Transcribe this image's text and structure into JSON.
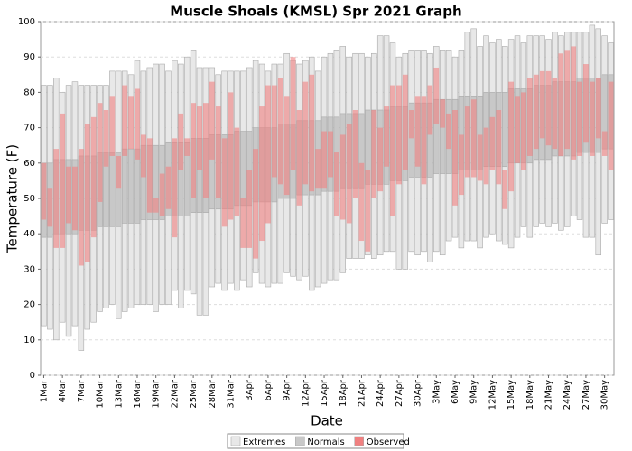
{
  "chart_data": {
    "type": "range_bar",
    "title": "Muscle Shoals (KMSL) Spr 2021 Graph",
    "x_label": "Date",
    "y_label": "Temperature (F)",
    "ylim": [
      0,
      100
    ],
    "yticks": [
      0,
      10,
      20,
      30,
      40,
      50,
      60,
      70,
      80,
      90,
      100
    ],
    "grid": true,
    "legend": "bottom",
    "categories": [
      "1Mar",
      null,
      null,
      "4Mar",
      null,
      null,
      "7Mar",
      null,
      null,
      "10Mar",
      null,
      null,
      "13Mar",
      null,
      null,
      "16Mar",
      null,
      null,
      "19Mar",
      null,
      null,
      "22Mar",
      null,
      null,
      "25Mar",
      null,
      null,
      "28Mar",
      null,
      null,
      "31Mar",
      null,
      null,
      "3Apr",
      null,
      null,
      "6Apr",
      null,
      null,
      "9Apr",
      null,
      null,
      "12Apr",
      null,
      null,
      "15Apr",
      null,
      null,
      "18Apr",
      null,
      null,
      "21Apr",
      null,
      null,
      "24Apr",
      null,
      null,
      "27Apr",
      null,
      null,
      "30Apr",
      null,
      null,
      "3May",
      null,
      null,
      "6May",
      null,
      null,
      "9May",
      null,
      null,
      "12May",
      null,
      null,
      "15May",
      null,
      null,
      "18May",
      null,
      null,
      "21May",
      null,
      null,
      "24May",
      null,
      null,
      "27May",
      null,
      null,
      "30May",
      null
    ],
    "series": [
      {
        "name": "Extremes",
        "color": "#e8e8e8",
        "low": [
          14,
          13,
          10,
          15,
          11,
          14,
          7,
          13,
          15,
          18,
          19,
          20,
          16,
          18,
          19,
          20,
          20,
          20,
          18,
          20,
          20,
          24,
          19,
          24,
          23,
          17,
          17,
          25,
          26,
          24,
          26,
          24,
          27,
          25,
          29,
          26,
          25,
          26,
          26,
          29,
          28,
          27,
          28,
          24,
          25,
          26,
          27,
          27,
          29,
          33,
          33,
          33,
          34,
          33,
          34,
          35,
          35,
          30,
          30,
          35,
          34,
          35,
          32,
          35,
          34,
          38,
          39,
          36,
          38,
          38,
          36,
          39,
          40,
          38,
          37,
          36,
          39,
          42,
          39,
          42,
          43,
          42,
          43,
          41,
          42,
          45,
          44,
          39,
          39,
          34,
          43,
          44
        ],
        "high": [
          82,
          82,
          84,
          80,
          82,
          83,
          82,
          82,
          82,
          82,
          82,
          86,
          86,
          86,
          85,
          89,
          86,
          87,
          88,
          88,
          86,
          89,
          88,
          90,
          92,
          87,
          87,
          87,
          85,
          86,
          86,
          86,
          86,
          87,
          89,
          88,
          86,
          88,
          88,
          91,
          89,
          88,
          89,
          90,
          86,
          90,
          91,
          92,
          93,
          90,
          91,
          91,
          90,
          91,
          96,
          96,
          94,
          90,
          91,
          92,
          92,
          92,
          91,
          93,
          92,
          92,
          90,
          92,
          97,
          98,
          93,
          96,
          94,
          95,
          93,
          95,
          96,
          94,
          96,
          96,
          96,
          95,
          97,
          96,
          97,
          97,
          97,
          97,
          99,
          98,
          96,
          94
        ]
      },
      {
        "name": "Normals",
        "color": "#c8c8c8",
        "low": [
          39,
          39,
          40,
          40,
          40,
          40,
          41,
          41,
          41,
          42,
          42,
          42,
          42,
          43,
          43,
          43,
          44,
          44,
          44,
          44,
          45,
          45,
          45,
          45,
          46,
          46,
          46,
          47,
          47,
          47,
          47,
          48,
          48,
          48,
          49,
          49,
          49,
          49,
          50,
          50,
          50,
          51,
          51,
          51,
          51,
          52,
          52,
          52,
          53,
          53,
          53,
          53,
          54,
          54,
          54,
          54,
          55,
          55,
          55,
          56,
          56,
          56,
          56,
          57,
          57,
          57,
          57,
          58,
          58,
          58,
          58,
          59,
          59,
          59,
          59,
          60,
          60,
          60,
          60,
          61,
          61,
          61,
          62,
          62,
          62,
          62,
          63,
          63,
          63,
          63,
          64,
          64
        ],
        "high": [
          60,
          60,
          61,
          61,
          61,
          61,
          62,
          62,
          62,
          63,
          63,
          63,
          63,
          64,
          64,
          64,
          65,
          65,
          65,
          65,
          66,
          66,
          66,
          66,
          67,
          67,
          67,
          68,
          68,
          68,
          68,
          69,
          69,
          69,
          70,
          70,
          70,
          70,
          71,
          71,
          71,
          72,
          72,
          72,
          72,
          73,
          73,
          73,
          74,
          74,
          74,
          74,
          75,
          75,
          75,
          75,
          76,
          76,
          76,
          77,
          77,
          77,
          77,
          78,
          78,
          78,
          78,
          79,
          79,
          79,
          79,
          80,
          80,
          80,
          80,
          81,
          81,
          81,
          81,
          82,
          82,
          82,
          83,
          83,
          83,
          83,
          84,
          84,
          84,
          84,
          85,
          85
        ]
      },
      {
        "name": "Observed",
        "color": "#f08080",
        "low": [
          44,
          42,
          36,
          36,
          43,
          41,
          31,
          32,
          39,
          49,
          59,
          62,
          53,
          62,
          64,
          61,
          56,
          46,
          46,
          45,
          47,
          39,
          58,
          62,
          50,
          58,
          50,
          61,
          50,
          42,
          44,
          45,
          36,
          36,
          33,
          38,
          43,
          56,
          54,
          51,
          58,
          48,
          54,
          52,
          53,
          53,
          56,
          45,
          44,
          43,
          50,
          38,
          35,
          50,
          52,
          59,
          45,
          54,
          58,
          67,
          59,
          54,
          68,
          71,
          70,
          64,
          48,
          51,
          56,
          56,
          55,
          54,
          58,
          54,
          47,
          52,
          60,
          58,
          62,
          64,
          67,
          65,
          64,
          62,
          64,
          61,
          62,
          66,
          62,
          67,
          62,
          58
        ],
        "high": [
          60,
          53,
          64,
          74,
          59,
          59,
          64,
          71,
          73,
          77,
          75,
          79,
          62,
          82,
          79,
          81,
          68,
          67,
          50,
          57,
          59,
          67,
          74,
          67,
          77,
          76,
          77,
          83,
          76,
          67,
          80,
          70,
          50,
          58,
          64,
          76,
          82,
          82,
          84,
          79,
          90,
          75,
          83,
          85,
          64,
          69,
          69,
          63,
          68,
          71,
          75,
          60,
          58,
          75,
          70,
          76,
          82,
          82,
          85,
          75,
          79,
          79,
          82,
          87,
          78,
          74,
          75,
          68,
          76,
          78,
          68,
          70,
          73,
          75,
          58,
          83,
          79,
          80,
          84,
          85,
          86,
          86,
          84,
          91,
          92,
          93,
          83,
          88,
          83,
          84,
          69,
          83
        ]
      }
    ]
  }
}
